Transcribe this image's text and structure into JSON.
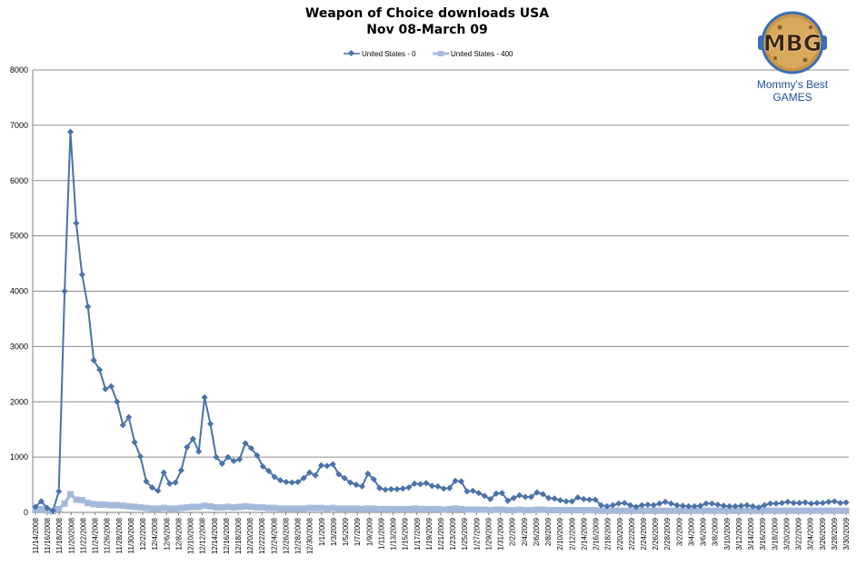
{
  "chart_data": {
    "type": "line",
    "title": "Weapon of Choice downloads USA",
    "subtitle": "Nov 08-March 09",
    "xlabel": "",
    "ylabel": "",
    "ylim": [
      0,
      8000
    ],
    "ytick_step": 1000,
    "grid": true,
    "legend_position": "top-center",
    "x_start_label": "11/14/2008",
    "x_tick_labels": [
      "11/14/2008",
      "11/16/2008",
      "11/18/2008",
      "11/20/2008",
      "11/22/2008",
      "11/24/2008",
      "11/26/2008",
      "11/28/2008",
      "11/30/2008",
      "12/2/2008",
      "12/4/2008",
      "12/6/2008",
      "12/8/2008",
      "12/10/2008",
      "12/12/2008",
      "12/14/2008",
      "12/16/2008",
      "12/18/2008",
      "12/20/2008",
      "12/22/2008",
      "12/24/2008",
      "12/26/2008",
      "12/28/2008",
      "12/30/2008",
      "1/1/2009",
      "1/3/2009",
      "1/5/2009",
      "1/7/2009",
      "1/9/2009",
      "1/11/2009",
      "1/13/2009",
      "1/15/2009",
      "1/17/2009",
      "1/19/2009",
      "1/21/2009",
      "1/23/2009",
      "1/25/2009",
      "1/27/2009",
      "1/29/2009",
      "1/31/2009",
      "2/2/2009",
      "2/4/2009",
      "2/6/2009",
      "2/8/2009",
      "2/10/2009",
      "2/12/2009",
      "2/14/2009",
      "2/16/2009",
      "2/18/2009",
      "2/20/2009",
      "2/22/2009",
      "2/24/2009",
      "2/26/2009",
      "2/28/2009",
      "3/2/2009",
      "3/4/2009",
      "3/6/2009",
      "3/8/2009",
      "3/10/2009",
      "3/12/2009",
      "3/14/2009",
      "3/16/2009",
      "3/18/2009",
      "3/20/2009",
      "3/22/2009",
      "3/24/2009",
      "3/26/2009",
      "3/28/2009",
      "3/30/2009"
    ],
    "series": [
      {
        "name": "United States - 0",
        "color": "#4a72a8",
        "marker": "diamond",
        "values": [
          100,
          200,
          80,
          30,
          380,
          4000,
          6880,
          5230,
          4300,
          3720,
          2750,
          2580,
          2230,
          2280,
          2000,
          1580,
          1720,
          1270,
          1010,
          560,
          450,
          390,
          720,
          520,
          540,
          760,
          1180,
          1330,
          1100,
          2080,
          1600,
          1000,
          880,
          1000,
          930,
          960,
          1250,
          1160,
          1030,
          830,
          750,
          640,
          580,
          550,
          540,
          550,
          620,
          720,
          670,
          850,
          840,
          870,
          690,
          620,
          540,
          500,
          470,
          700,
          600,
          440,
          410,
          420,
          420,
          430,
          450,
          520,
          510,
          530,
          480,
          470,
          430,
          440,
          570,
          560,
          380,
          390,
          350,
          300,
          240,
          340,
          350,
          210,
          260,
          310,
          280,
          280,
          360,
          330,
          260,
          250,
          220,
          200,
          200,
          270,
          240,
          230,
          230,
          130,
          110,
          130,
          160,
          170,
          130,
          100,
          130,
          140,
          130,
          160,
          190,
          160,
          130,
          120,
          110,
          110,
          120,
          160,
          160,
          140,
          120,
          110,
          110,
          120,
          130,
          110,
          90,
          130,
          160,
          160,
          170,
          190,
          170,
          170,
          180,
          160,
          170,
          170,
          190,
          200,
          170,
          180
        ]
      },
      {
        "name": "United States - 400",
        "color": "#a5b9db",
        "marker": "square",
        "values": [
          40,
          60,
          30,
          20,
          60,
          160,
          330,
          230,
          220,
          170,
          150,
          140,
          140,
          130,
          130,
          120,
          110,
          100,
          90,
          80,
          70,
          70,
          80,
          70,
          70,
          80,
          90,
          100,
          100,
          120,
          110,
          90,
          90,
          100,
          90,
          100,
          110,
          100,
          90,
          90,
          80,
          80,
          70,
          70,
          70,
          70,
          70,
          80,
          80,
          80,
          70,
          80,
          70,
          70,
          70,
          70,
          60,
          70,
          70,
          60,
          60,
          60,
          60,
          60,
          60,
          70,
          60,
          60,
          60,
          60,
          50,
          60,
          70,
          60,
          50,
          50,
          50,
          50,
          40,
          50,
          50,
          40,
          40,
          50,
          40,
          40,
          50,
          50,
          40,
          40,
          40,
          40,
          40,
          40,
          40,
          40,
          40,
          30,
          30,
          30,
          30,
          30,
          30,
          30,
          30,
          30,
          30,
          30,
          30,
          30,
          30,
          30,
          30,
          30,
          30,
          30,
          30,
          30,
          30,
          30,
          30,
          30,
          30,
          30,
          30,
          30,
          30,
          30,
          30,
          30,
          30,
          30,
          30,
          30,
          30,
          30,
          30,
          30,
          30,
          30
        ]
      }
    ]
  },
  "logo": {
    "initials": "MBG",
    "line1": "Mommy's Best",
    "line2": "GAMES"
  }
}
